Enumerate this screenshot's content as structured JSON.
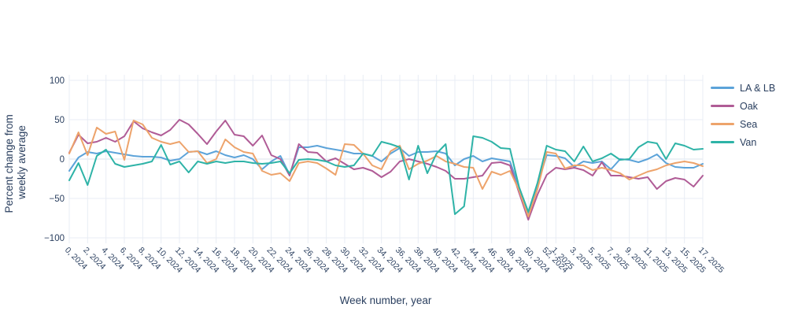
{
  "figure": {
    "background": "#ffffff",
    "text_color": "#2a3f5f",
    "grid_color": "#e8edf4",
    "axis": {
      "x_title": "Week number, year",
      "y_title_lines": [
        "Percent change from",
        "weekly average"
      ],
      "y_tick_labels": [
        "100",
        "50",
        "0",
        "−50",
        "−100"
      ],
      "y_tick_values": [
        100,
        50,
        0,
        -50,
        -100
      ],
      "x_tick_labels": [
        "0, 2024",
        "2, 2024",
        "4, 2024",
        "6, 2024",
        "8, 2024",
        "10, 2024",
        "12, 2024",
        "14, 2024",
        "16, 2024",
        "18, 2024",
        "20, 2024",
        "22, 2024",
        "24, 2024",
        "26, 2024",
        "28, 2024",
        "30, 2024",
        "32, 2024",
        "34, 2024",
        "36, 2024",
        "38, 2024",
        "40, 2024",
        "42, 2024",
        "44, 2024",
        "46, 2024",
        "48, 2024",
        "50, 2024",
        "52, 2024",
        "1, 2025",
        "3, 2025",
        "5, 2025",
        "7, 2025",
        "9, 2025",
        "11, 2025",
        "13, 2025",
        "15, 2025",
        "17, 2025"
      ],
      "x_tick_positions": [
        0,
        2,
        4,
        6,
        8,
        10,
        12,
        14,
        16,
        18,
        20,
        22,
        24,
        26,
        28,
        30,
        32,
        34,
        36,
        38,
        40,
        42,
        44,
        46,
        48,
        50,
        52,
        53,
        55,
        57,
        59,
        61,
        63,
        65,
        67,
        69
      ]
    }
  },
  "legend": {
    "items": [
      {
        "label": "LA & LB",
        "color": "#5ca3d9"
      },
      {
        "label": "Oak",
        "color": "#b05c96"
      },
      {
        "label": "Sea",
        "color": "#eda36b"
      },
      {
        "label": "Van",
        "color": "#2eb3a7"
      }
    ]
  },
  "chart_data": {
    "type": "line",
    "title": "",
    "xlabel": "Week number, year",
    "ylabel": "Percent change from weekly average",
    "ylim": [
      -100,
      100
    ],
    "grid": true,
    "legend_position": "right",
    "x_categories": [
      "0, 2024",
      "1, 2024",
      "2, 2024",
      "3, 2024",
      "4, 2024",
      "5, 2024",
      "6, 2024",
      "7, 2024",
      "8, 2024",
      "9, 2024",
      "10, 2024",
      "11, 2024",
      "12, 2024",
      "13, 2024",
      "14, 2024",
      "15, 2024",
      "16, 2024",
      "17, 2024",
      "18, 2024",
      "19, 2024",
      "20, 2024",
      "21, 2024",
      "22, 2024",
      "23, 2024",
      "24, 2024",
      "25, 2024",
      "26, 2024",
      "27, 2024",
      "28, 2024",
      "29, 2024",
      "30, 2024",
      "31, 2024",
      "32, 2024",
      "33, 2024",
      "34, 2024",
      "35, 2024",
      "36, 2024",
      "37, 2024",
      "38, 2024",
      "39, 2024",
      "40, 2024",
      "41, 2024",
      "42, 2024",
      "43, 2024",
      "44, 2024",
      "45, 2024",
      "46, 2024",
      "47, 2024",
      "48, 2024",
      "49, 2024",
      "50, 2024",
      "51, 2024",
      "52, 2024",
      "1, 2025",
      "2, 2025",
      "3, 2025",
      "4, 2025",
      "5, 2025",
      "6, 2025",
      "7, 2025",
      "8, 2025",
      "9, 2025",
      "10, 2025",
      "11, 2025",
      "12, 2025",
      "13, 2025",
      "14, 2025",
      "15, 2025",
      "16, 2025",
      "17, 2025"
    ],
    "series": [
      {
        "name": "LA & LB",
        "color": "#5ca3d9",
        "values": [
          -15,
          2,
          9,
          7,
          10,
          8,
          6,
          4,
          3,
          3,
          2,
          -2,
          0,
          9,
          10,
          6,
          10,
          5,
          2,
          5,
          0,
          -13,
          -3,
          4,
          -20,
          15,
          15,
          17,
          14,
          12,
          10,
          7,
          7,
          4,
          -3,
          7,
          14,
          4,
          9,
          9,
          10,
          7,
          -8,
          0,
          4,
          -3,
          1,
          -1,
          -3,
          -36,
          -71,
          -32,
          5,
          4,
          1,
          -10,
          -3,
          -5,
          -3,
          -13,
          0,
          -1,
          -4,
          0,
          6,
          -5,
          -10,
          -11,
          -11,
          -6
        ]
      },
      {
        "name": "Oak",
        "color": "#b05c96",
        "values": [
          8,
          31,
          20,
          22,
          27,
          22,
          29,
          48,
          39,
          34,
          30,
          37,
          50,
          44,
          32,
          19,
          35,
          49,
          31,
          29,
          17,
          30,
          5,
          0,
          -21,
          19,
          9,
          8,
          -3,
          1,
          -6,
          -13,
          -11,
          -15,
          -23,
          -16,
          -3,
          0,
          -3,
          -6,
          -10,
          -15,
          -25,
          -25,
          -23,
          -21,
          -5,
          -4,
          -8,
          -43,
          -77,
          -45,
          -20,
          -11,
          -13,
          -11,
          -14,
          -21,
          -4,
          -21,
          -21,
          -23,
          -25,
          -23,
          -38,
          -28,
          -24,
          -26,
          -35,
          -21
        ]
      },
      {
        "name": "Sea",
        "color": "#eda36b",
        "values": [
          7,
          34,
          5,
          40,
          32,
          35,
          -1,
          49,
          44,
          27,
          22,
          19,
          22,
          9,
          10,
          -5,
          0,
          25,
          15,
          9,
          7,
          -15,
          -20,
          -18,
          -28,
          -5,
          -3,
          -5,
          -12,
          -20,
          19,
          18,
          7,
          -8,
          -13,
          10,
          17,
          -13,
          -6,
          -2,
          4,
          -3,
          -6,
          -10,
          -11,
          -38,
          -16,
          -20,
          -15,
          -40,
          -73,
          -38,
          9,
          7,
          -12,
          -8,
          -8,
          -14,
          -11,
          -14,
          -18,
          -26,
          -21,
          -16,
          -13,
          -8,
          -5,
          -3,
          -5,
          -9
        ]
      },
      {
        "name": "Van",
        "color": "#2eb3a7",
        "values": [
          -27,
          -5,
          -33,
          4,
          12,
          -6,
          -10,
          -8,
          -6,
          -3,
          18,
          -7,
          -3,
          -17,
          -3,
          -6,
          -3,
          -5,
          -3,
          -3,
          -5,
          -6,
          -5,
          -3,
          -18,
          -1,
          0,
          -1,
          -3,
          -8,
          -10,
          -8,
          7,
          4,
          22,
          19,
          15,
          -26,
          17,
          -18,
          7,
          19,
          -70,
          -60,
          29,
          27,
          22,
          14,
          13,
          -36,
          -67,
          -30,
          17,
          12,
          10,
          -3,
          16,
          -3,
          1,
          7,
          -1,
          0,
          15,
          22,
          20,
          0,
          20,
          17,
          12,
          13
        ]
      }
    ]
  }
}
